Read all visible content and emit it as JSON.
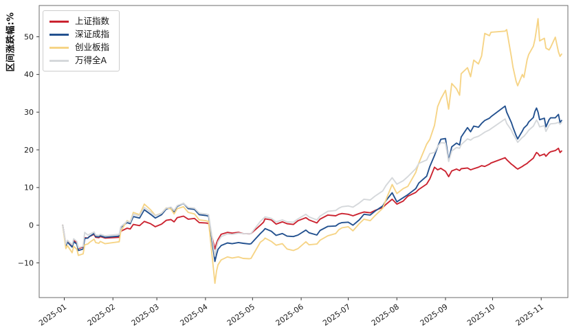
{
  "chart": {
    "background": "#ffffff",
    "spine_color": "#6b6b6b",
    "tick_color": "#3a3a3a",
    "text_color": "#1a1a1a"
  },
  "chart_data": {
    "type": "line",
    "title": "",
    "xlabel": "",
    "ylabel": "区间涨跌幅:%",
    "grid": false,
    "legend_position": "upper-left",
    "ylim": [
      -19.2,
      58.3
    ],
    "yticks": [
      -10,
      0,
      10,
      20,
      30,
      40,
      50
    ],
    "xlim_dates": [
      "2024-12-16",
      "2025-11-18"
    ],
    "xtick_labels": [
      "2025-01",
      "2025-02",
      "2025-03",
      "2025-04",
      "2025-05",
      "2025-06",
      "2025-07",
      "2025-08",
      "2025-09",
      "2025-10",
      "2025-11"
    ],
    "dates": [
      "2024-12-31",
      "2025-01-02",
      "2025-01-03",
      "2025-01-06",
      "2025-01-07",
      "2025-01-09",
      "2025-01-10",
      "2025-01-13",
      "2025-01-14",
      "2025-01-16",
      "2025-01-17",
      "2025-01-20",
      "2025-01-21",
      "2025-01-23",
      "2025-01-24",
      "2025-01-27",
      "2025-02-05",
      "2025-02-06",
      "2025-02-10",
      "2025-02-12",
      "2025-02-14",
      "2025-02-18",
      "2025-02-21",
      "2025-02-25",
      "2025-02-28",
      "2025-03-04",
      "2025-03-07",
      "2025-03-10",
      "2025-03-12",
      "2025-03-14",
      "2025-03-18",
      "2025-03-21",
      "2025-03-25",
      "2025-03-28",
      "2025-04-01",
      "2025-04-03",
      "2025-04-07",
      "2025-04-08",
      "2025-04-09",
      "2025-04-11",
      "2025-04-15",
      "2025-04-18",
      "2025-04-22",
      "2025-04-25",
      "2025-04-29",
      "2025-04-30",
      "2025-05-06",
      "2025-05-08",
      "2025-05-09",
      "2025-05-13",
      "2025-05-16",
      "2025-05-20",
      "2025-05-23",
      "2025-05-27",
      "2025-05-30",
      "2025-06-04",
      "2025-06-06",
      "2025-06-11",
      "2025-06-13",
      "2025-06-18",
      "2025-06-23",
      "2025-06-25",
      "2025-06-27",
      "2025-07-01",
      "2025-07-04",
      "2025-07-08",
      "2025-07-11",
      "2025-07-15",
      "2025-07-18",
      "2025-07-23",
      "2025-07-25",
      "2025-07-29",
      "2025-08-01",
      "2025-08-05",
      "2025-08-08",
      "2025-08-13",
      "2025-08-15",
      "2025-08-20",
      "2025-08-22",
      "2025-08-25",
      "2025-08-27",
      "2025-08-29",
      "2025-09-01",
      "2025-09-03",
      "2025-09-05",
      "2025-09-08",
      "2025-09-10",
      "2025-09-11",
      "2025-09-15",
      "2025-09-17",
      "2025-09-19",
      "2025-09-22",
      "2025-09-24",
      "2025-09-26",
      "2025-09-29",
      "2025-09-30",
      "2025-10-09",
      "2025-10-10",
      "2025-10-13",
      "2025-10-14",
      "2025-10-16",
      "2025-10-17",
      "2025-10-20",
      "2025-10-21",
      "2025-10-23",
      "2025-10-24",
      "2025-10-27",
      "2025-10-28",
      "2025-10-29",
      "2025-10-30",
      "2025-10-31",
      "2025-11-03",
      "2025-11-04",
      "2025-11-06",
      "2025-11-07",
      "2025-11-10",
      "2025-11-12",
      "2025-11-13",
      "2025-11-14"
    ],
    "series": [
      {
        "name": "上证指数",
        "color": "#cb2330",
        "values": [
          0,
          -5.2,
          -4.3,
          -5.5,
          -4.0,
          -4.6,
          -6.2,
          -5.8,
          -3.3,
          -3.4,
          -3.0,
          -2.4,
          -3.2,
          -3.3,
          -3.0,
          -3.4,
          -3.2,
          -1.6,
          -0.8,
          -1.0,
          0.2,
          -0.1,
          1.0,
          0.4,
          -0.4,
          0.3,
          1.3,
          1.5,
          0.9,
          2.0,
          2.4,
          1.6,
          1.8,
          0.7,
          0.6,
          0.5,
          -6.3,
          -4.8,
          -3.8,
          -2.4,
          -1.9,
          -2.1,
          -1.9,
          -2.2,
          -2.3,
          -2.2,
          0.0,
          0.8,
          1.7,
          1.4,
          0.3,
          0.9,
          0.4,
          0.2,
          1.2,
          2.0,
          1.4,
          0.6,
          1.6,
          2.7,
          2.5,
          2.9,
          3.1,
          2.9,
          2.5,
          3.1,
          3.5,
          3.3,
          3.9,
          4.7,
          5.5,
          6.9,
          5.6,
          6.4,
          7.7,
          8.7,
          9.5,
          10.9,
          12.3,
          15.4,
          14.7,
          15.1,
          14.3,
          12.9,
          14.4,
          14.9,
          14.5,
          15.0,
          15.2,
          14.7,
          15.0,
          15.4,
          15.8,
          15.6,
          16.2,
          16.5,
          17.9,
          17.4,
          16.2,
          15.9,
          15.2,
          14.9,
          15.6,
          15.9,
          16.4,
          16.8,
          17.8,
          18.6,
          19.3,
          19.0,
          18.4,
          18.9,
          18.3,
          19.2,
          19.5,
          19.8,
          20.4,
          19.3,
          19.7
        ]
      },
      {
        "name": "深证成指",
        "color": "#23518f",
        "values": [
          0,
          -5.4,
          -4.5,
          -5.8,
          -4.4,
          -5.0,
          -6.7,
          -6.3,
          -3.5,
          -3.4,
          -3.0,
          -2.2,
          -3.0,
          -3.1,
          -2.8,
          -3.2,
          -2.9,
          -0.6,
          0.7,
          0.4,
          2.3,
          1.9,
          4.1,
          2.9,
          1.9,
          2.8,
          4.3,
          4.6,
          3.6,
          5.0,
          5.8,
          4.4,
          4.2,
          2.8,
          2.6,
          2.4,
          -9.6,
          -7.8,
          -6.4,
          -5.4,
          -4.7,
          -4.9,
          -4.6,
          -4.8,
          -5.0,
          -4.9,
          -2.2,
          -1.4,
          -0.9,
          -1.6,
          -2.7,
          -2.2,
          -2.9,
          -3.0,
          -2.6,
          -1.3,
          -2.0,
          -2.6,
          -1.4,
          -0.3,
          -0.2,
          0.4,
          0.7,
          0.8,
          0.0,
          1.4,
          2.9,
          2.7,
          3.7,
          5.1,
          6.5,
          8.6,
          6.2,
          7.3,
          8.1,
          9.7,
          11.2,
          13.0,
          15.6,
          18.5,
          20.8,
          22.8,
          23.0,
          17.2,
          20.8,
          21.8,
          21.3,
          23.4,
          25.9,
          24.8,
          26.3,
          26.0,
          27.0,
          27.8,
          28.4,
          28.8,
          31.6,
          30.0,
          27.2,
          26.0,
          23.8,
          22.9,
          25.0,
          25.8,
          26.6,
          27.4,
          28.6,
          30.2,
          31.1,
          30.0,
          28.0,
          28.4,
          26.1,
          28.0,
          28.5,
          28.5,
          29.4,
          27.3,
          27.8
        ]
      },
      {
        "name": "创业板指",
        "color": "#f6d486",
        "values": [
          0,
          -6.2,
          -5.4,
          -7.3,
          -5.6,
          -6.4,
          -8.0,
          -7.6,
          -5.2,
          -5.0,
          -4.6,
          -3.7,
          -4.6,
          -4.8,
          -4.3,
          -4.9,
          -4.4,
          -1.6,
          1.2,
          0.8,
          3.4,
          2.8,
          5.6,
          4.1,
          2.6,
          3.2,
          4.6,
          4.3,
          3.0,
          4.4,
          4.9,
          3.4,
          3.0,
          1.4,
          1.2,
          1.0,
          -15.4,
          -12.2,
          -10.5,
          -9.2,
          -8.4,
          -8.7,
          -8.4,
          -8.8,
          -8.9,
          -8.8,
          -4.5,
          -3.9,
          -3.4,
          -4.3,
          -5.3,
          -4.9,
          -6.3,
          -6.7,
          -6.2,
          -4.4,
          -5.2,
          -5.0,
          -4.0,
          -2.8,
          -2.2,
          -1.2,
          -0.7,
          -0.4,
          -1.5,
          0.4,
          1.6,
          1.2,
          2.5,
          4.5,
          6.7,
          10.8,
          8.4,
          9.7,
          10.3,
          14.0,
          16.5,
          21.5,
          22.8,
          26.5,
          31.5,
          33.5,
          35.8,
          30.8,
          37.6,
          36.2,
          34.5,
          40.2,
          41.8,
          39.4,
          43.8,
          42.8,
          44.9,
          50.9,
          50.3,
          51.2,
          51.5,
          51.9,
          44.6,
          42.0,
          38.2,
          37.0,
          40.0,
          39.2,
          43.9,
          45.3,
          47.5,
          49.3,
          52.0,
          54.8,
          48.9,
          49.6,
          47.0,
          46.5,
          47.2,
          49.9,
          46.0,
          44.8,
          45.4
        ]
      },
      {
        "name": "万得全A",
        "color": "#d5d8db",
        "values": [
          0,
          -5.0,
          -4.0,
          -5.2,
          -3.6,
          -4.3,
          -6.0,
          -5.6,
          -1.9,
          -2.6,
          -2.4,
          -1.8,
          -2.6,
          -2.7,
          -2.4,
          -2.8,
          -2.4,
          -0.4,
          1.0,
          0.8,
          2.9,
          2.5,
          4.7,
          3.5,
          2.5,
          3.2,
          4.5,
          4.8,
          3.9,
          5.2,
          5.8,
          4.7,
          4.5,
          3.2,
          3.0,
          2.8,
          -8.2,
          -5.8,
          -4.4,
          -3.0,
          -2.3,
          -2.4,
          -2.1,
          -2.2,
          -2.3,
          -2.2,
          1.0,
          1.8,
          2.2,
          1.8,
          0.9,
          1.4,
          0.9,
          0.8,
          1.7,
          2.9,
          2.2,
          1.4,
          2.4,
          3.7,
          3.9,
          4.5,
          4.9,
          5.1,
          4.8,
          5.9,
          6.9,
          6.7,
          7.7,
          9.1,
          10.5,
          12.6,
          10.9,
          11.8,
          12.9,
          15.0,
          16.4,
          17.3,
          19.0,
          19.3,
          20.9,
          21.9,
          21.8,
          16.9,
          19.7,
          20.6,
          20.4,
          21.4,
          22.9,
          22.6,
          23.2,
          23.6,
          24.1,
          24.7,
          25.3,
          25.6,
          28.2,
          27.0,
          25.2,
          24.3,
          22.8,
          22.0,
          23.3,
          23.6,
          24.6,
          25.2,
          26.3,
          27.1,
          27.9,
          27.2,
          26.1,
          26.4,
          24.9,
          26.5,
          26.9,
          27.0,
          27.3,
          26.8,
          27.3
        ]
      }
    ]
  }
}
